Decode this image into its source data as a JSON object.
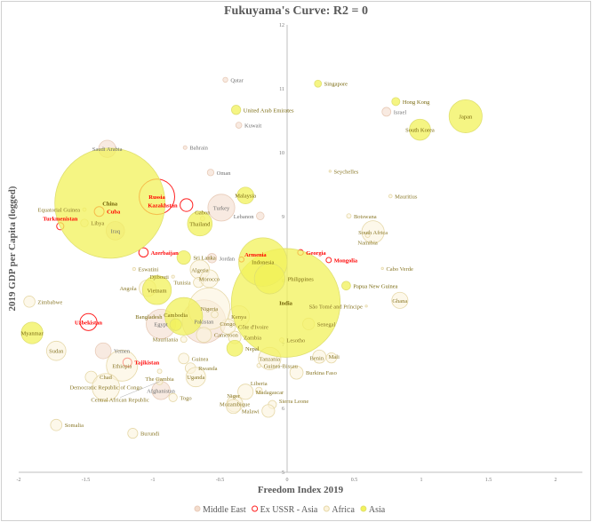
{
  "chart_data": {
    "type": "scatter",
    "title": "Fukuyama's Curve: R2 = 0",
    "xlabel": "Freedom Index 2019",
    "ylabel": "2019 GDP per Capita (logged)",
    "xlim": [
      -2,
      2.2
    ],
    "ylim": [
      5,
      12
    ],
    "xticks": [
      "-2",
      "-1.5",
      "-1",
      "-0.5",
      "0",
      "0.5",
      "1",
      "1.5",
      "2"
    ],
    "xtick_values": [
      -2,
      -1.5,
      -1,
      -0.5,
      0,
      0.5,
      1,
      1.5,
      2
    ],
    "yticks": [
      "5",
      "6",
      "7",
      "8",
      "9",
      "10",
      "11",
      "12"
    ],
    "ytick_values": [
      5,
      6,
      7,
      8,
      9,
      10,
      11,
      12
    ],
    "legend_position": "bottom",
    "series": [
      {
        "name": "Middle East",
        "fill": "#f3dccd",
        "stroke": "#e8cbb8",
        "label_color": "#707070",
        "points": [
          {
            "name": "Qatar",
            "x": -0.46,
            "y": 11.14,
            "size": 2.8
          },
          {
            "name": "Kuwait",
            "x": -0.36,
            "y": 10.43,
            "size": 4.2
          },
          {
            "name": "Saudi Arabia",
            "x": -1.34,
            "y": 10.06,
            "size": 34
          },
          {
            "name": "Bahrain",
            "x": -0.76,
            "y": 10.08,
            "size": 1.6
          },
          {
            "name": "Oman",
            "x": -0.57,
            "y": 9.69,
            "size": 5
          },
          {
            "name": "Turkey",
            "x": -0.49,
            "y": 9.14,
            "size": 83
          },
          {
            "name": "Lebanon",
            "x": -0.2,
            "y": 9.01,
            "size": 6.8
          },
          {
            "name": "Israel",
            "x": 0.74,
            "y": 10.64,
            "size": 9
          },
          {
            "name": "Iraq",
            "x": -1.28,
            "y": 8.78,
            "size": 39
          },
          {
            "name": "Jordan",
            "x": -0.56,
            "y": 8.35,
            "size": 10
          },
          {
            "name": "Yemen",
            "x": -1.37,
            "y": 6.9,
            "size": 29
          },
          {
            "name": "Egypt",
            "x": -0.94,
            "y": 7.32,
            "size": 100
          },
          {
            "name": "Afghanistan",
            "x": -0.94,
            "y": 6.28,
            "size": 38
          },
          {
            "name": "Pakistan",
            "x": -0.62,
            "y": 7.36,
            "size": 216
          }
        ]
      },
      {
        "name": "Ex USSR - Asia",
        "fill": "none",
        "stroke": "#ff2020",
        "label_color": "#ff0000",
        "points": [
          {
            "name": "Russia",
            "x": -0.97,
            "y": 9.31,
            "size": 145
          },
          {
            "name": "Kazakhstan",
            "x": -0.75,
            "y": 9.18,
            "size": 18.5
          },
          {
            "name": "Turkmenistan",
            "x": -1.69,
            "y": 8.85,
            "size": 6
          },
          {
            "name": "Azerbaijan",
            "x": -1.07,
            "y": 8.44,
            "size": 10
          },
          {
            "name": "Uzbekistan",
            "x": -1.48,
            "y": 7.35,
            "size": 33
          },
          {
            "name": "Tajikistan",
            "x": -1.19,
            "y": 6.72,
            "size": 9
          },
          {
            "name": "Armenia",
            "x": -0.34,
            "y": 8.33,
            "size": 3
          },
          {
            "name": "Georgia",
            "x": 0.1,
            "y": 8.44,
            "size": 3.7
          },
          {
            "name": "Mongolia",
            "x": 0.31,
            "y": 8.32,
            "size": 3.2
          },
          {
            "name": "Cuba",
            "x": -1.4,
            "y": 9.08,
            "size": 11
          }
        ]
      },
      {
        "name": "Africa",
        "fill": "#fcf3dc",
        "stroke": "#e6d8a8",
        "label_color": "#8a7828",
        "points": [
          {
            "name": "Seychelles",
            "x": 0.32,
            "y": 9.71,
            "size": 0.1
          },
          {
            "name": "Mauritius",
            "x": 0.77,
            "y": 9.32,
            "size": 1.3
          },
          {
            "name": "Botswana",
            "x": 0.46,
            "y": 9.01,
            "size": 2.3
          },
          {
            "name": "South Africa",
            "x": 0.64,
            "y": 8.76,
            "size": 58
          },
          {
            "name": "Namibia",
            "x": 0.6,
            "y": 8.71,
            "size": 2.5
          },
          {
            "name": "Cabo Verde",
            "x": 0.71,
            "y": 8.19,
            "size": 0.55
          },
          {
            "name": "Ghana",
            "x": 0.84,
            "y": 7.69,
            "size": 30
          },
          {
            "name": "São Tomé and Príncipe",
            "x": 0.59,
            "y": 7.6,
            "size": 0.2
          },
          {
            "name": "Senegal",
            "x": 0.16,
            "y": 7.32,
            "size": 16
          },
          {
            "name": "Mali",
            "x": 0.24,
            "y": 6.81,
            "size": 20
          },
          {
            "name": "Benin",
            "x": 0.33,
            "y": 6.79,
            "size": 12
          },
          {
            "name": "Burkina Faso",
            "x": 0.07,
            "y": 6.56,
            "size": 20
          },
          {
            "name": "Lesotho",
            "x": -0.04,
            "y": 7.07,
            "size": 2.1
          },
          {
            "name": "Kenya",
            "x": -0.36,
            "y": 7.44,
            "size": 52
          },
          {
            "name": "Zambia",
            "x": -0.39,
            "y": 7.11,
            "size": 18
          },
          {
            "name": "Côte d'Ivoire",
            "x": -0.44,
            "y": 7.28,
            "size": 26
          },
          {
            "name": "Nigeria",
            "x": -0.58,
            "y": 7.56,
            "size": 200
          },
          {
            "name": "Cameroon",
            "x": -0.62,
            "y": 7.15,
            "size": 26
          },
          {
            "name": "Congo",
            "x": -0.54,
            "y": 7.47,
            "size": 5.4
          },
          {
            "name": "Djibouti",
            "x": -0.85,
            "y": 8.06,
            "size": 1
          },
          {
            "name": "Algeria",
            "x": -0.65,
            "y": 8.17,
            "size": 43
          },
          {
            "name": "Tunisia",
            "x": -0.66,
            "y": 7.97,
            "size": 12
          },
          {
            "name": "Morocco",
            "x": -0.58,
            "y": 8.03,
            "size": 36
          },
          {
            "name": "Eswatini",
            "x": -1.14,
            "y": 8.18,
            "size": 1.1
          },
          {
            "name": "Angola",
            "x": -1.04,
            "y": 7.88,
            "size": 32
          },
          {
            "name": "Zimbabwe",
            "x": -1.92,
            "y": 7.67,
            "size": 14.6
          },
          {
            "name": "Sudan",
            "x": -1.72,
            "y": 6.9,
            "size": 43
          },
          {
            "name": "Chad",
            "x": -1.46,
            "y": 6.49,
            "size": 16
          },
          {
            "name": "Ethiopia",
            "x": -1.23,
            "y": 6.67,
            "size": 112
          },
          {
            "name": "Democratic Republic of Congo",
            "x": -1.35,
            "y": 6.33,
            "size": 87
          },
          {
            "name": "Central African Republic",
            "x": -0.95,
            "y": 6.42,
            "size": 4.7
          },
          {
            "name": "The Gambia",
            "x": -0.95,
            "y": 6.58,
            "size": 2.3
          },
          {
            "name": "Guinea",
            "x": -0.77,
            "y": 6.78,
            "size": 12.8
          },
          {
            "name": "Togo",
            "x": -0.85,
            "y": 6.17,
            "size": 8
          },
          {
            "name": "Rwanda",
            "x": -0.72,
            "y": 6.63,
            "size": 12.6
          },
          {
            "name": "Uganda",
            "x": -0.68,
            "y": 6.49,
            "size": 44
          },
          {
            "name": "Mauritania",
            "x": -0.77,
            "y": 7.08,
            "size": 4.5
          },
          {
            "name": "Guinea-Bissau",
            "x": -0.21,
            "y": 6.67,
            "size": 1.9
          },
          {
            "name": "Tanzania",
            "x": -0.13,
            "y": 6.78,
            "size": 58
          },
          {
            "name": "Liberia",
            "x": -0.21,
            "y": 6.28,
            "size": 5
          },
          {
            "name": "Madagascar",
            "x": -0.31,
            "y": 6.26,
            "size": 27
          },
          {
            "name": "Mozambique",
            "x": -0.39,
            "y": 6.07,
            "size": 30
          },
          {
            "name": "Sierra Leone",
            "x": -0.11,
            "y": 6.06,
            "size": 7.8
          },
          {
            "name": "Malawi",
            "x": -0.14,
            "y": 5.96,
            "size": 18.6
          },
          {
            "name": "Niger",
            "x": -0.4,
            "y": 6.03,
            "size": 23
          },
          {
            "name": "Somalia",
            "x": -1.72,
            "y": 5.74,
            "size": 15
          },
          {
            "name": "Burundi",
            "x": -1.15,
            "y": 5.61,
            "size": 11.5
          },
          {
            "name": "Libya",
            "x": -1.51,
            "y": 8.9,
            "size": 6.7
          },
          {
            "name": "Equatorial Guinea",
            "x": -1.51,
            "y": 9.11,
            "size": 1.4
          },
          {
            "name": "Gabon",
            "x": -0.63,
            "y": 8.97,
            "size": 2.2
          }
        ]
      },
      {
        "name": "Asia",
        "fill": "#f2f25a",
        "stroke": "#e0e070",
        "label_color": "#7a6a10",
        "points": [
          {
            "name": "China",
            "x": -1.32,
            "y": 9.21,
            "size": 1400
          },
          {
            "name": "India",
            "x": -0.01,
            "y": 7.65,
            "size": 1366
          },
          {
            "name": "Japan",
            "x": 1.33,
            "y": 10.57,
            "size": 126
          },
          {
            "name": "South Korea",
            "x": 0.99,
            "y": 10.36,
            "size": 51
          },
          {
            "name": "Hong Kong",
            "x": 0.81,
            "y": 10.8,
            "size": 7.5
          },
          {
            "name": "Singapore",
            "x": 0.23,
            "y": 11.08,
            "size": 5.7
          },
          {
            "name": "United Arab Emirates",
            "x": -0.38,
            "y": 10.67,
            "size": 9.8
          },
          {
            "name": "Malaysia",
            "x": -0.31,
            "y": 9.33,
            "size": 32
          },
          {
            "name": "Thailand",
            "x": -0.65,
            "y": 8.89,
            "size": 70
          },
          {
            "name": "Indonesia",
            "x": -0.18,
            "y": 8.29,
            "size": 270
          },
          {
            "name": "Philippines",
            "x": -0.13,
            "y": 8.03,
            "size": 108
          },
          {
            "name": "Vietnam",
            "x": -0.97,
            "y": 7.85,
            "size": 96
          },
          {
            "name": "Bangladesh",
            "x": -0.77,
            "y": 7.44,
            "size": 163
          },
          {
            "name": "Cambodia",
            "x": -0.83,
            "y": 7.31,
            "size": 16
          },
          {
            "name": "Myanmar",
            "x": -1.9,
            "y": 7.18,
            "size": 54
          },
          {
            "name": "Sri Lanka",
            "x": -0.77,
            "y": 8.36,
            "size": 21
          },
          {
            "name": "Nepal",
            "x": -0.39,
            "y": 6.94,
            "size": 29
          },
          {
            "name": "Papua New Guinea",
            "x": 0.44,
            "y": 7.92,
            "size": 8.8
          }
        ]
      }
    ]
  }
}
